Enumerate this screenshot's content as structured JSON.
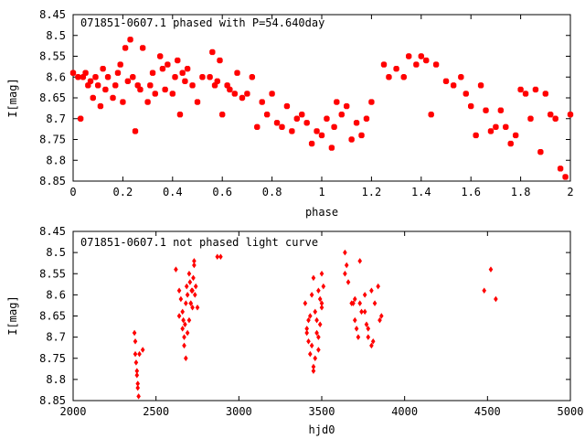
{
  "chart_data": [
    {
      "type": "scatter",
      "title": "071851-0607.1 phased with P=54.640day",
      "xlabel": "phase",
      "ylabel": "I[mag]",
      "xlim": [
        0,
        2
      ],
      "ylim": [
        8.85,
        8.45
      ],
      "y_inverted": true,
      "x_ticks": [
        "0",
        "0.2",
        "0.4",
        "0.6",
        "0.8",
        "1",
        "1.2",
        "1.4",
        "1.6",
        "1.8",
        "2"
      ],
      "x_tick_values": [
        0,
        0.2,
        0.4,
        0.6,
        0.8,
        1,
        1.2,
        1.4,
        1.6,
        1.8,
        2
      ],
      "y_ticks": [
        "8.45",
        "8.5",
        "8.55",
        "8.6",
        "8.65",
        "8.7",
        "8.75",
        "8.8",
        "8.85"
      ],
      "y_tick_values": [
        8.45,
        8.5,
        8.55,
        8.6,
        8.65,
        8.7,
        8.75,
        8.8,
        8.85
      ],
      "marker_color": "#ff0000",
      "series": [
        {
          "x": [
            0.0,
            0.02,
            0.03,
            0.04,
            0.05,
            0.06,
            0.07,
            0.08,
            0.09,
            0.1,
            0.11,
            0.12,
            0.13,
            0.14,
            0.16,
            0.17,
            0.18,
            0.19,
            0.2,
            0.21,
            0.22,
            0.23,
            0.24,
            0.25,
            0.26,
            0.27,
            0.28,
            0.3,
            0.31,
            0.32,
            0.33,
            0.35,
            0.36,
            0.37,
            0.38,
            0.4,
            0.41,
            0.42,
            0.43,
            0.44,
            0.45,
            0.46,
            0.48,
            0.5,
            0.52,
            0.55,
            0.56,
            0.57,
            0.58,
            0.59,
            0.6,
            0.62,
            0.63,
            0.65,
            0.66,
            0.68,
            0.7,
            0.72,
            0.74,
            0.76,
            0.78,
            0.8,
            0.82,
            0.84,
            0.86,
            0.88,
            0.9,
            0.92,
            0.94,
            0.96,
            0.98,
            1.0,
            1.02,
            1.04,
            1.05,
            1.06,
            1.08,
            1.1,
            1.12,
            1.14,
            1.16,
            1.18,
            1.2,
            1.25,
            1.27,
            1.3,
            1.33,
            1.35,
            1.38,
            1.4,
            1.42,
            1.44,
            1.46,
            1.5,
            1.53,
            1.56,
            1.58,
            1.6,
            1.62,
            1.64,
            1.66,
            1.68,
            1.7,
            1.72,
            1.74,
            1.76,
            1.78,
            1.8,
            1.82,
            1.84,
            1.86,
            1.88,
            1.9,
            1.92,
            1.94,
            1.96,
            1.98,
            2.0
          ],
          "y": [
            8.59,
            8.6,
            8.7,
            8.6,
            8.59,
            8.62,
            8.61,
            8.65,
            8.6,
            8.62,
            8.67,
            8.58,
            8.63,
            8.6,
            8.65,
            8.62,
            8.59,
            8.57,
            8.66,
            8.53,
            8.61,
            8.51,
            8.6,
            8.73,
            8.62,
            8.63,
            8.53,
            8.66,
            8.62,
            8.59,
            8.64,
            8.55,
            8.58,
            8.63,
            8.57,
            8.64,
            8.6,
            8.56,
            8.69,
            8.59,
            8.61,
            8.58,
            8.62,
            8.66,
            8.6,
            8.6,
            8.54,
            8.62,
            8.61,
            8.56,
            8.69,
            8.62,
            8.63,
            8.64,
            8.59,
            8.65,
            8.64,
            8.6,
            8.72,
            8.66,
            8.69,
            8.64,
            8.71,
            8.72,
            8.67,
            8.73,
            8.7,
            8.69,
            8.71,
            8.76,
            8.73,
            8.74,
            8.7,
            8.77,
            8.72,
            8.66,
            8.69,
            8.67,
            8.75,
            8.71,
            8.74,
            8.7,
            8.66,
            8.57,
            8.6,
            8.58,
            8.6,
            8.55,
            8.57,
            8.55,
            8.56,
            8.69,
            8.57,
            8.61,
            8.62,
            8.6,
            8.64,
            8.67,
            8.74,
            8.62,
            8.68,
            8.73,
            8.72,
            8.68,
            8.72,
            8.76,
            8.74,
            8.63,
            8.64,
            8.7,
            8.63,
            8.78,
            8.64,
            8.69,
            8.7,
            8.82,
            8.84,
            8.69
          ]
        }
      ]
    },
    {
      "type": "scatter",
      "title": "071851-0607.1 not phased light curve",
      "xlabel": "hjd0",
      "ylabel": "I[mag]",
      "xlim": [
        2000,
        5000
      ],
      "ylim": [
        8.85,
        8.45
      ],
      "y_inverted": true,
      "x_ticks": [
        "2000",
        "2500",
        "3000",
        "3500",
        "4000",
        "4500",
        "5000"
      ],
      "x_tick_values": [
        2000,
        2500,
        3000,
        3500,
        4000,
        4500,
        5000
      ],
      "y_ticks": [
        "8.45",
        "8.5",
        "8.55",
        "8.6",
        "8.65",
        "8.7",
        "8.75",
        "8.8",
        "8.85"
      ],
      "y_tick_values": [
        8.45,
        8.5,
        8.55,
        8.6,
        8.65,
        8.7,
        8.75,
        8.8,
        8.85
      ],
      "marker_color": "#ff0000",
      "series": [
        {
          "x": [
            2370,
            2375,
            2380,
            2385,
            2390,
            2395,
            2400,
            2375,
            2385,
            2390,
            2420,
            2620,
            2640,
            2650,
            2660,
            2665,
            2670,
            2675,
            2680,
            2685,
            2690,
            2700,
            2705,
            2710,
            2715,
            2720,
            2725,
            2730,
            2735,
            2740,
            2750,
            2640,
            2660,
            2670,
            2680,
            2690,
            2700,
            2710,
            2720,
            2730,
            2870,
            2890,
            3400,
            3410,
            3420,
            3430,
            3440,
            3450,
            3460,
            3470,
            3480,
            3490,
            3500,
            3510,
            3420,
            3440,
            3460,
            3480,
            3500,
            3410,
            3450,
            3490,
            3430,
            3470,
            3500,
            3450,
            3480,
            3640,
            3660,
            3680,
            3700,
            3720,
            3740,
            3760,
            3780,
            3800,
            3820,
            3840,
            3860,
            3650,
            3690,
            3730,
            3770,
            3810,
            3850,
            3700,
            3760,
            3800,
            3640,
            3710,
            3780,
            3730,
            4480,
            4520,
            4550
          ],
          "y": [
            8.69,
            8.74,
            8.76,
            8.79,
            8.82,
            8.84,
            8.74,
            8.71,
            8.78,
            8.81,
            8.73,
            8.54,
            8.59,
            8.61,
            8.64,
            8.66,
            8.7,
            8.67,
            8.62,
            8.58,
            8.6,
            8.55,
            8.57,
            8.62,
            8.59,
            8.63,
            8.56,
            8.53,
            8.6,
            8.58,
            8.63,
            8.65,
            8.68,
            8.72,
            8.75,
            8.69,
            8.66,
            8.62,
            8.59,
            8.52,
            8.51,
            8.51,
            8.62,
            8.68,
            8.71,
            8.65,
            8.6,
            8.56,
            8.64,
            8.69,
            8.73,
            8.67,
            8.62,
            8.58,
            8.66,
            8.72,
            8.75,
            8.7,
            8.63,
            8.69,
            8.77,
            8.61,
            8.74,
            8.66,
            8.55,
            8.78,
            8.59,
            8.5,
            8.57,
            8.62,
            8.66,
            8.7,
            8.64,
            8.6,
            8.68,
            8.72,
            8.62,
            8.58,
            8.65,
            8.53,
            8.62,
            8.52,
            8.67,
            8.71,
            8.66,
            8.61,
            8.64,
            8.59,
            8.55,
            8.68,
            8.7,
            8.62,
            8.59,
            8.54,
            8.61
          ]
        }
      ]
    }
  ]
}
